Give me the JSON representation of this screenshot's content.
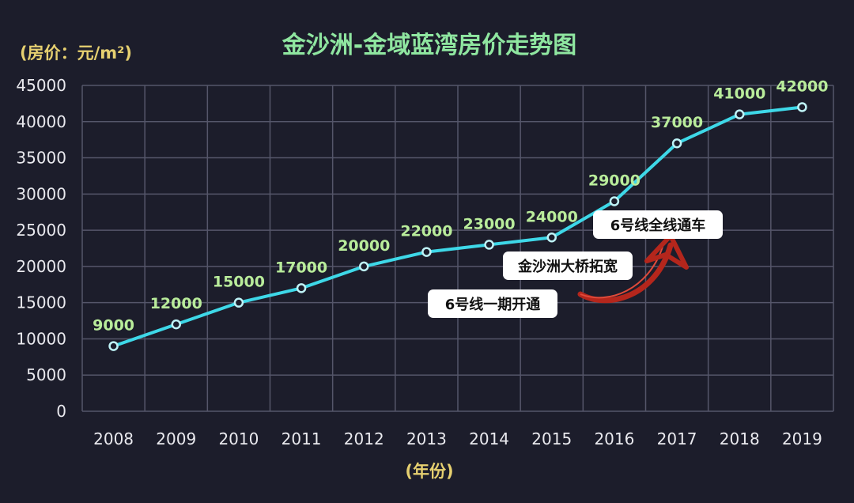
{
  "chart_data": {
    "type": "line",
    "title": "金沙洲-金域蓝湾房价走势图",
    "ylabel": "(房价：元/m²)",
    "xlabel": "(年份)",
    "categories": [
      "2008",
      "2009",
      "2010",
      "2011",
      "2012",
      "2013",
      "2014",
      "2015",
      "2016",
      "2017",
      "2018",
      "2019"
    ],
    "values": [
      9000,
      12000,
      15000,
      17000,
      20000,
      22000,
      23000,
      24000,
      29000,
      37000,
      41000,
      42000
    ],
    "ylim": [
      0,
      45000
    ],
    "yticks": [
      0,
      5000,
      10000,
      15000,
      20000,
      25000,
      30000,
      35000,
      40000,
      45000
    ],
    "grid": true,
    "annotations": [
      {
        "text": "6号线全线通车"
      },
      {
        "text": "金沙洲大桥拓宽"
      },
      {
        "text": "6号线一期开通"
      }
    ],
    "colors": {
      "line": "#3ed8e8",
      "background": "#1c1d2b",
      "arrow": "#c0281e"
    }
  }
}
